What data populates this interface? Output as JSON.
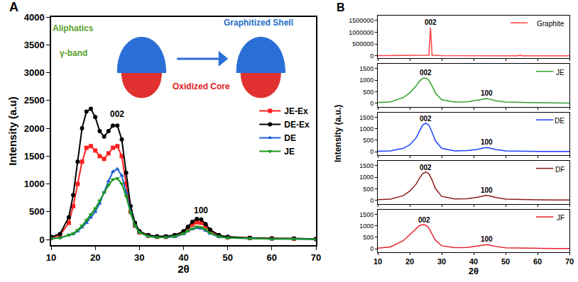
{
  "chart_data": [
    {
      "type": "line",
      "panel_label": "A",
      "x_label": "2θ",
      "y_label": "Intensity (a.u)",
      "xlim": [
        10,
        70
      ],
      "xticks": [
        10,
        20,
        30,
        40,
        50,
        60,
        70
      ],
      "ylim": [
        -100,
        4000
      ],
      "yticks": [
        0,
        500,
        1000,
        1500,
        2000,
        2500,
        3000,
        3500,
        4000
      ],
      "legend": "right",
      "x": [
        10,
        12,
        14,
        15,
        16,
        17,
        18,
        19,
        20,
        21,
        22,
        23,
        24,
        25,
        26,
        27,
        28,
        29,
        30,
        32,
        34,
        36,
        38,
        40,
        41,
        42,
        43,
        44,
        45,
        46,
        48,
        50,
        55,
        60,
        65,
        70
      ],
      "series": [
        {
          "name": "JE-Ex",
          "color": "#ff2020",
          "marker": "square",
          "values": [
            30,
            80,
            300,
            600,
            1000,
            1400,
            1650,
            1680,
            1600,
            1500,
            1450,
            1550,
            1650,
            1680,
            1500,
            1000,
            500,
            250,
            130,
            70,
            50,
            50,
            70,
            130,
            200,
            270,
            310,
            300,
            240,
            160,
            70,
            40,
            30,
            20,
            15,
            10
          ]
        },
        {
          "name": "DE-Ex",
          "color": "#000000",
          "marker": "circle",
          "values": [
            50,
            100,
            400,
            800,
            1400,
            2000,
            2300,
            2350,
            2200,
            1950,
            1850,
            1950,
            2050,
            2050,
            1800,
            1200,
            600,
            300,
            150,
            80,
            60,
            60,
            80,
            150,
            230,
            320,
            370,
            360,
            280,
            180,
            80,
            50,
            30,
            20,
            20,
            10
          ]
        },
        {
          "name": "DE",
          "color": "#1f5fd0",
          "marker": "triangle-up",
          "values": [
            20,
            30,
            80,
            100,
            150,
            220,
            300,
            400,
            500,
            650,
            850,
            1050,
            1220,
            1270,
            1150,
            850,
            500,
            250,
            130,
            60,
            40,
            40,
            50,
            100,
            150,
            190,
            210,
            200,
            160,
            110,
            50,
            30,
            20,
            10,
            10,
            5
          ]
        },
        {
          "name": "JE",
          "color": "#1a9a1a",
          "marker": "triangle-down",
          "values": [
            20,
            30,
            80,
            110,
            170,
            250,
            350,
            450,
            560,
            700,
            850,
            980,
            1080,
            1100,
            1000,
            780,
            480,
            250,
            130,
            60,
            40,
            40,
            60,
            110,
            160,
            200,
            230,
            220,
            180,
            120,
            55,
            30,
            20,
            10,
            10,
            5
          ]
        }
      ],
      "annotations": [
        {
          "text": "Aliphatics",
          "x": 15,
          "y": 3800,
          "color": "#5aa02c"
        },
        {
          "text": "γ-band",
          "x": 15,
          "y": 3350,
          "color": "#5aa02c"
        },
        {
          "text": "Graphitized Shell",
          "x": 57,
          "y": 3900,
          "color": "#1f6fc5"
        },
        {
          "text": "Oxidized Core",
          "x": 44,
          "y": 2750,
          "color": "#e02020"
        },
        {
          "text": "002",
          "x": 25,
          "y": 2250,
          "color": "#000000"
        },
        {
          "text": "100",
          "x": 44,
          "y": 520,
          "color": "#000000"
        }
      ]
    },
    {
      "type": "line",
      "panel_label": "B",
      "x_label": "2θ",
      "y_label": "Intensity (a.u.)",
      "xlim": [
        10,
        70
      ],
      "xticks": [
        10,
        20,
        30,
        40,
        50,
        60,
        70
      ],
      "legend": "upper right",
      "panels": [
        {
          "name": "Graphite",
          "color": "#ff4040",
          "x": [
            10,
            20,
            26,
            26.5,
            27,
            30,
            40,
            54,
            54.6,
            55,
            60,
            70
          ],
          "values": [
            5000,
            8000,
            20000,
            1200000,
            20000,
            5000,
            3000,
            3000,
            40000,
            3000,
            2000,
            2000
          ],
          "ylim": [
            -100000,
            1700000
          ],
          "yticks": [
            0,
            500000,
            1000000,
            1500000
          ],
          "annotations": [
            {
              "text": "002",
              "x": 26.5,
              "y": 1420000
            }
          ]
        },
        {
          "name": "JE",
          "color": "#33a02c",
          "x": [
            10,
            14,
            18,
            20,
            22,
            23,
            24,
            25,
            26,
            27,
            28,
            30,
            34,
            38,
            41,
            43,
            44,
            45,
            47,
            50,
            55,
            60,
            65,
            70
          ],
          "values": [
            30,
            60,
            250,
            450,
            750,
            950,
            1080,
            1100,
            1000,
            750,
            450,
            150,
            50,
            60,
            130,
            190,
            200,
            180,
            110,
            50,
            30,
            20,
            15,
            10
          ],
          "ylim": [
            -150,
            1700
          ],
          "yticks": [
            0,
            500,
            1000,
            1500
          ],
          "annotations": [
            {
              "text": "002",
              "x": 25,
              "y": 1320
            },
            {
              "text": "100",
              "x": 44,
              "y": 430
            }
          ]
        },
        {
          "name": "DE",
          "color": "#1f3fff",
          "x": [
            10,
            14,
            18,
            20,
            22,
            23,
            24,
            25,
            26,
            27,
            28,
            30,
            34,
            38,
            41,
            43,
            44,
            45,
            47,
            50,
            55,
            60,
            65,
            70
          ],
          "values": [
            20,
            40,
            150,
            300,
            600,
            900,
            1150,
            1250,
            1150,
            850,
            480,
            150,
            40,
            50,
            100,
            160,
            180,
            160,
            100,
            40,
            20,
            15,
            10,
            10
          ],
          "ylim": [
            -150,
            1700
          ],
          "yticks": [
            0,
            500,
            1000,
            1500
          ],
          "annotations": [
            {
              "text": "002",
              "x": 25,
              "y": 1450
            },
            {
              "text": "100",
              "x": 44,
              "y": 430
            }
          ]
        },
        {
          "name": "DF",
          "color": "#8b1a1a",
          "x": [
            10,
            14,
            18,
            20,
            22,
            23,
            24,
            25,
            26,
            27,
            28,
            30,
            34,
            38,
            41,
            43,
            44,
            45,
            47,
            50,
            55,
            60,
            65,
            70
          ],
          "values": [
            30,
            50,
            200,
            400,
            700,
            950,
            1150,
            1230,
            1150,
            880,
            520,
            170,
            60,
            70,
            130,
            190,
            210,
            190,
            120,
            50,
            30,
            20,
            15,
            10
          ],
          "ylim": [
            -150,
            1700
          ],
          "yticks": [
            0,
            500,
            1000,
            1500
          ],
          "annotations": [
            {
              "text": "002",
              "x": 25,
              "y": 1430
            },
            {
              "text": "100",
              "x": 44,
              "y": 430
            }
          ]
        },
        {
          "name": "JF",
          "color": "#e8202a",
          "x": [
            10,
            14,
            18,
            20,
            22,
            23,
            24,
            25,
            26,
            27,
            28,
            30,
            34,
            38,
            41,
            43,
            44,
            45,
            47,
            50,
            55,
            60,
            65,
            70
          ],
          "values": [
            30,
            80,
            350,
            600,
            850,
            1000,
            1050,
            1030,
            900,
            650,
            380,
            130,
            50,
            60,
            120,
            170,
            180,
            160,
            100,
            45,
            30,
            20,
            15,
            10
          ],
          "ylim": [
            -150,
            1700
          ],
          "yticks": [
            0,
            500,
            1000,
            1500
          ],
          "annotations": [
            {
              "text": "002",
              "x": 24.5,
              "y": 1250
            },
            {
              "text": "100",
              "x": 44,
              "y": 430
            }
          ]
        }
      ]
    }
  ]
}
